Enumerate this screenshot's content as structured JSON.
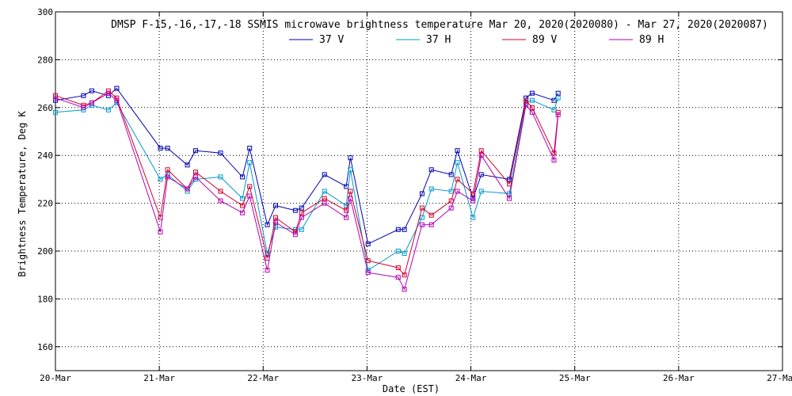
{
  "chart_data": {
    "type": "line",
    "title": "DMSP F-15,-16,-17,-18 SSMIS microwave brightness temperature Mar 20, 2020(2020080) - Mar 27, 2020(2020087)",
    "xlabel": "Date (EST)",
    "ylabel": "Brightness Temperature, Deg K",
    "xlim": [
      0,
      7
    ],
    "ylim": [
      150,
      300
    ],
    "x_ticks": [
      0,
      1,
      2,
      3,
      4,
      5,
      6,
      7
    ],
    "x_tick_labels": [
      "20-Mar",
      "21-Mar",
      "22-Mar",
      "23-Mar",
      "24-Mar",
      "25-Mar",
      "26-Mar",
      "27-Mar"
    ],
    "y_ticks": [
      160,
      180,
      200,
      220,
      240,
      260,
      280,
      300
    ],
    "y_tick_labels": [
      "160",
      "180",
      "200",
      "220",
      "240",
      "260",
      "280",
      "300"
    ],
    "grid": true,
    "legend_position": "top",
    "series": [
      {
        "name": "37 V",
        "color": "#0000b4",
        "x": [
          0.0,
          0.27,
          0.35,
          0.51,
          0.59,
          1.01,
          1.08,
          1.27,
          1.35,
          1.59,
          1.8,
          1.87,
          2.04,
          2.12,
          2.31,
          2.37,
          2.59,
          2.8,
          2.84,
          3.01,
          3.3,
          3.36,
          3.53,
          3.62,
          3.81,
          3.87,
          4.02,
          4.1,
          4.37,
          4.53,
          4.59,
          4.8,
          4.84
        ],
        "y": [
          263,
          265,
          267,
          265,
          268,
          243,
          243,
          236,
          242,
          241,
          231,
          243,
          211,
          219,
          217,
          218,
          232,
          227,
          239,
          203,
          209,
          209,
          224,
          234,
          232,
          242,
          222,
          232,
          230,
          264,
          266,
          263,
          266
        ]
      },
      {
        "name": "37 H",
        "color": "#009bcc",
        "x": [
          0.0,
          0.27,
          0.35,
          0.51,
          0.59,
          1.01,
          1.08,
          1.27,
          1.35,
          1.59,
          1.8,
          1.87,
          2.04,
          2.12,
          2.31,
          2.37,
          2.59,
          2.8,
          2.84,
          3.01,
          3.3,
          3.36,
          3.53,
          3.62,
          3.81,
          3.87,
          4.02,
          4.1,
          4.37,
          4.53,
          4.59,
          4.8,
          4.84
        ],
        "y": [
          258,
          259,
          261,
          259,
          262,
          230,
          232,
          225,
          230,
          231,
          222,
          237,
          199,
          210,
          209,
          209,
          225,
          219,
          234,
          192,
          200,
          199,
          214,
          226,
          225,
          237,
          214,
          225,
          224,
          262,
          263,
          259,
          264
        ]
      },
      {
        "name": "89 V",
        "color": "#d2002d",
        "x": [
          0.0,
          0.27,
          0.35,
          0.51,
          0.59,
          1.01,
          1.08,
          1.27,
          1.35,
          1.59,
          1.8,
          1.87,
          2.04,
          2.12,
          2.31,
          2.37,
          2.59,
          2.8,
          2.84,
          3.01,
          3.3,
          3.36,
          3.53,
          3.62,
          3.81,
          3.87,
          4.02,
          4.1,
          4.37,
          4.53,
          4.59,
          4.8,
          4.84
        ],
        "y": [
          265,
          261,
          262,
          267,
          264,
          214,
          234,
          226,
          233,
          225,
          219,
          227,
          197,
          214,
          208,
          216,
          222,
          217,
          225,
          196,
          193,
          190,
          218,
          215,
          221,
          230,
          224,
          242,
          228,
          263,
          260,
          241,
          258
        ]
      },
      {
        "name": "89 H",
        "color": "#b400b4",
        "x": [
          0.0,
          0.27,
          0.35,
          0.51,
          0.59,
          1.01,
          1.08,
          1.27,
          1.35,
          1.59,
          1.8,
          1.87,
          2.04,
          2.12,
          2.31,
          2.37,
          2.59,
          2.8,
          2.84,
          3.01,
          3.3,
          3.36,
          3.53,
          3.62,
          3.81,
          3.87,
          4.02,
          4.1,
          4.37,
          4.53,
          4.59,
          4.8,
          4.84
        ],
        "y": [
          264,
          260,
          262,
          266,
          263,
          208,
          231,
          226,
          231,
          221,
          216,
          223,
          192,
          212,
          207,
          214,
          220,
          214,
          222,
          191,
          189,
          184,
          211,
          211,
          218,
          225,
          221,
          240,
          222,
          261,
          258,
          238,
          257
        ]
      }
    ]
  }
}
